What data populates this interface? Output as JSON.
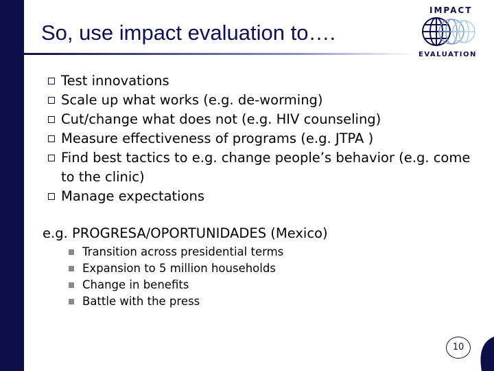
{
  "header": {
    "title": "So, use impact evaluation to….",
    "logo": {
      "top": "IMPACT",
      "bottom": "EVALUATION"
    }
  },
  "bullets": [
    "Test innovations",
    "Scale up what works (e.g. de-worming)",
    "Cut/change what does not (e.g. HIV counseling)",
    "Measure effectiveness of programs (e.g. JTPA )",
    "Find best tactics to e.g. change people’s behavior (e.g. come to the clinic)",
    "Manage expectations"
  ],
  "example": {
    "heading": "e.g. PROGRESA/OPORTUNIDADES (Mexico)",
    "items": [
      "Transition across presidential terms",
      "Expansion to 5 million households",
      "Change in benefits",
      "Battle with the press"
    ]
  },
  "page_number": "10"
}
